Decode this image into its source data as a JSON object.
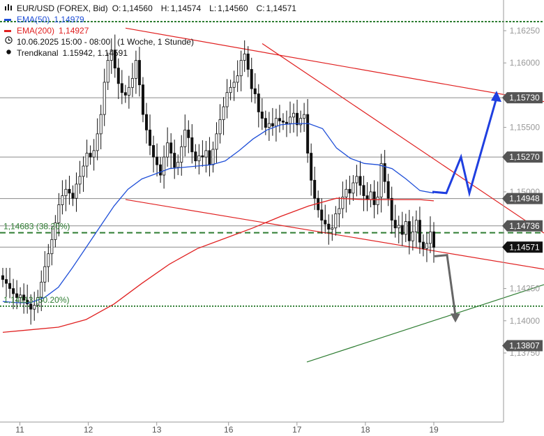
{
  "header": {
    "symbol_line": "EUR/USD (FOREX, Bid)",
    "ohlc": [
      {
        "label": "O:",
        "value": "1,14560"
      },
      {
        "label": "H:",
        "value": "1,14574"
      },
      {
        "label": "L:",
        "value": "1,14560"
      },
      {
        "label": "C:",
        "value": "1,14571"
      }
    ],
    "ema50": {
      "label": "EMA(50)",
      "value": "1,14979",
      "color": "#1f4fd8"
    },
    "ema200": {
      "label": "EMA(200)",
      "value": "1,14927",
      "color": "#e02020"
    },
    "timeframe": "10.06.2025 15:00 - 08:00   (1 Woche, 1 Stunde)",
    "trendkanal": {
      "label": "Trendkanal",
      "value": "1.15942, 1.14591"
    }
  },
  "icons": [
    "bar-chart-icon",
    "clock-icon",
    "dot-icon"
  ],
  "colors": {
    "ema50": "#1f4fd8",
    "ema200": "#e02020",
    "support_lines": "#2e7d32",
    "forecast_up": "#1f3fe0",
    "forecast_down": "#666666",
    "price_tag_bg": "#555555",
    "current_price_bg": "#111111"
  },
  "chart_data": {
    "type": "candlestick",
    "instrument": "EUR/USD",
    "x_tick_labels": [
      "11",
      "12",
      "13",
      "16",
      "17",
      "18",
      "19"
    ],
    "y_tick_labels": [
      "1,16250",
      "1,16000",
      "1,15500",
      "1,15000",
      "1,14250",
      "1,14000",
      "1,13750"
    ],
    "ylim": [
      1.1373,
      1.1637
    ],
    "price_tags": [
      {
        "label": "1,15730",
        "value": 1.1573
      },
      {
        "label": "1,15270",
        "value": 1.1527
      },
      {
        "label": "1,14948",
        "value": 1.14948
      },
      {
        "label": "1,14736",
        "value": 1.14736
      },
      {
        "label": "1,13807",
        "value": 1.13807
      }
    ],
    "current_price": {
      "label": "1,14571",
      "value": 1.14571
    },
    "fib_levels": [
      {
        "label": "1,14683 (38.20%)",
        "value": 1.14683
      },
      {
        "label": "1,14113 (50.20%)",
        "value": 1.14113
      }
    ],
    "series": [
      {
        "name": "EMA(50)",
        "points": [
          [
            0,
            1.1415
          ],
          [
            4,
            1.1414
          ],
          [
            8,
            1.1414
          ],
          [
            12,
            1.1418
          ],
          [
            16,
            1.1426
          ],
          [
            20,
            1.1441
          ],
          [
            24,
            1.1457
          ],
          [
            28,
            1.1473
          ],
          [
            32,
            1.1489
          ],
          [
            36,
            1.1502
          ],
          [
            40,
            1.151
          ],
          [
            44,
            1.1514
          ],
          [
            48,
            1.1518
          ],
          [
            52,
            1.1519
          ],
          [
            56,
            1.152
          ],
          [
            60,
            1.1521
          ],
          [
            64,
            1.1524
          ],
          [
            68,
            1.1532
          ],
          [
            72,
            1.1541
          ],
          [
            76,
            1.1548
          ],
          [
            80,
            1.1552
          ],
          [
            84,
            1.1553
          ],
          [
            88,
            1.1553
          ],
          [
            92,
            1.1549
          ],
          [
            96,
            1.1534
          ],
          [
            100,
            1.1526
          ],
          [
            104,
            1.1522
          ],
          [
            108,
            1.1521
          ],
          [
            112,
            1.1518
          ],
          [
            116,
            1.151
          ],
          [
            120,
            1.1501
          ],
          [
            124,
            1.1499
          ]
        ]
      },
      {
        "name": "EMA(200)",
        "points": [
          [
            0,
            1.1391
          ],
          [
            8,
            1.1393
          ],
          [
            16,
            1.1395
          ],
          [
            24,
            1.1401
          ],
          [
            32,
            1.1413
          ],
          [
            40,
            1.1429
          ],
          [
            48,
            1.1444
          ],
          [
            56,
            1.1456
          ],
          [
            64,
            1.1464
          ],
          [
            72,
            1.1472
          ],
          [
            80,
            1.1481
          ],
          [
            88,
            1.1489
          ],
          [
            96,
            1.1495
          ],
          [
            104,
            1.1494
          ],
          [
            112,
            1.1494
          ],
          [
            120,
            1.1494
          ],
          [
            124,
            1.1493
          ]
        ]
      }
    ],
    "candles_close": [
      1.1432,
      1.1429,
      1.1425,
      1.1421,
      1.1418,
      1.142,
      1.1416,
      1.1413,
      1.1409,
      1.1412,
      1.1418,
      1.143,
      1.1442,
      1.1452,
      1.1463,
      1.1476,
      1.149,
      1.1497,
      1.1502,
      1.1499,
      1.1495,
      1.1506,
      1.1512,
      1.152,
      1.153,
      1.1527,
      1.1532,
      1.1545,
      1.156,
      1.1585,
      1.1602,
      1.161,
      1.1596,
      1.1584,
      1.1577,
      1.1575,
      1.1581,
      1.1588,
      1.1602,
      1.1583,
      1.156,
      1.1548,
      1.1536,
      1.1527,
      1.1521,
      1.1513,
      1.1527,
      1.1538,
      1.153,
      1.1519,
      1.1523,
      1.1535,
      1.1548,
      1.1542,
      1.1531,
      1.1524,
      1.1528,
      1.1527,
      1.1532,
      1.1521,
      1.1533,
      1.1545,
      1.1556,
      1.1566,
      1.1577,
      1.1581,
      1.1585,
      1.159,
      1.1602,
      1.1607,
      1.1595,
      1.158,
      1.1576,
      1.1562,
      1.1557,
      1.155,
      1.1553,
      1.1551,
      1.1557,
      1.1555,
      1.1554,
      1.1553,
      1.1558,
      1.1561,
      1.1552,
      1.1557,
      1.156,
      1.153,
      1.1509,
      1.1495,
      1.1486,
      1.1478,
      1.1475,
      1.1471,
      1.1472,
      1.1483,
      1.1487,
      1.1496,
      1.1502,
      1.1499,
      1.1507,
      1.1512,
      1.1505,
      1.1497,
      1.1494,
      1.15,
      1.149,
      1.1496,
      1.1522,
      1.1508,
      1.1495,
      1.1478,
      1.1472,
      1.1474,
      1.1467,
      1.1477,
      1.1462,
      1.1469,
      1.1478,
      1.1461,
      1.1456,
      1.146,
      1.1469,
      1.1457
    ],
    "channel": {
      "upper": [
        [
          0,
          1.1627
        ],
        [
          135,
          1.157
        ]
      ],
      "lower": [
        [
          0,
          1.1494
        ],
        [
          135,
          1.144
        ]
      ],
      "wedge_falling": [
        [
          52,
          1.1615
        ],
        [
          135,
          1.1468
        ]
      ]
    },
    "green_trendline": [
      [
        62,
        1.1368
      ],
      [
        135,
        1.1428
      ]
    ],
    "forecast_up": [
      [
        105,
        1.15
      ],
      [
        110,
        1.1499
      ],
      [
        112,
        1.1527
      ],
      [
        115,
        1.1499
      ],
      [
        120,
        1.1573
      ]
    ],
    "forecast_down": [
      [
        104,
        1.145
      ],
      [
        107,
        1.1451
      ],
      [
        109,
        1.1404
      ]
    ]
  }
}
